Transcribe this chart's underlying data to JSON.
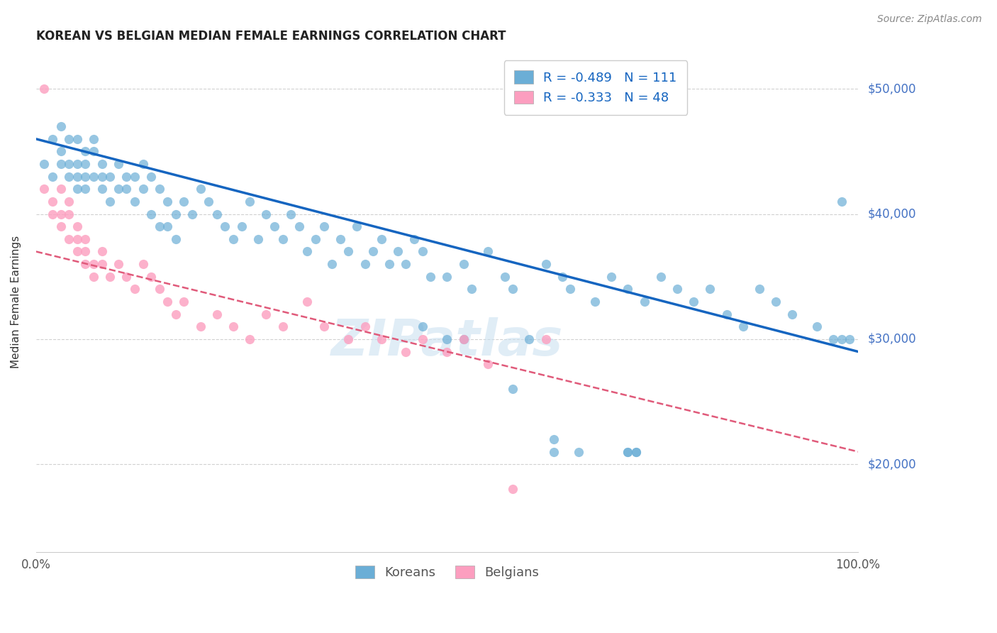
{
  "title": "KOREAN VS BELGIAN MEDIAN FEMALE EARNINGS CORRELATION CHART",
  "source": "Source: ZipAtlas.com",
  "ylabel": "Median Female Earnings",
  "xlim": [
    0.0,
    1.0
  ],
  "ylim": [
    13000,
    53000
  ],
  "yticks": [
    20000,
    30000,
    40000,
    50000
  ],
  "ytick_labels": [
    "$20,000",
    "$30,000",
    "$40,000",
    "$50,000"
  ],
  "xtick_labels": [
    "0.0%",
    "100.0%"
  ],
  "korean_color": "#6baed6",
  "belgian_color": "#fc9ebf",
  "korean_line_color": "#1565c0",
  "belgian_line_color": "#e05a7a",
  "watermark": "ZIPatlas",
  "koreans_label": "Koreans",
  "belgians_label": "Belgians",
  "korean_R": -0.489,
  "belgian_R": -0.333,
  "korean_N": 111,
  "belgian_N": 48,
  "korean_slope": -17000,
  "korean_intercept": 46000,
  "belgian_slope": -16000,
  "belgian_intercept": 37000,
  "korean_points_x": [
    0.01,
    0.02,
    0.02,
    0.03,
    0.03,
    0.03,
    0.04,
    0.04,
    0.04,
    0.05,
    0.05,
    0.05,
    0.05,
    0.06,
    0.06,
    0.06,
    0.06,
    0.07,
    0.07,
    0.07,
    0.08,
    0.08,
    0.08,
    0.09,
    0.09,
    0.1,
    0.1,
    0.11,
    0.11,
    0.12,
    0.12,
    0.13,
    0.13,
    0.14,
    0.14,
    0.15,
    0.15,
    0.16,
    0.16,
    0.17,
    0.17,
    0.18,
    0.19,
    0.2,
    0.21,
    0.22,
    0.23,
    0.24,
    0.25,
    0.26,
    0.27,
    0.28,
    0.29,
    0.3,
    0.31,
    0.32,
    0.33,
    0.34,
    0.35,
    0.36,
    0.37,
    0.38,
    0.39,
    0.4,
    0.41,
    0.42,
    0.43,
    0.44,
    0.45,
    0.46,
    0.47,
    0.48,
    0.5,
    0.52,
    0.53,
    0.55,
    0.57,
    0.58,
    0.6,
    0.62,
    0.64,
    0.65,
    0.68,
    0.7,
    0.72,
    0.74,
    0.76,
    0.78,
    0.8,
    0.82,
    0.84,
    0.86,
    0.88,
    0.9,
    0.92,
    0.95,
    0.97,
    0.98,
    0.99,
    0.47,
    0.5,
    0.52,
    0.58,
    0.63,
    0.66,
    0.63,
    0.72,
    0.73,
    0.72,
    0.73,
    0.98
  ],
  "korean_points_y": [
    44000,
    46000,
    43000,
    44000,
    45000,
    47000,
    46000,
    44000,
    43000,
    44000,
    46000,
    43000,
    42000,
    45000,
    44000,
    43000,
    42000,
    43000,
    45000,
    46000,
    43000,
    44000,
    42000,
    41000,
    43000,
    42000,
    44000,
    43000,
    42000,
    43000,
    41000,
    44000,
    42000,
    40000,
    43000,
    39000,
    42000,
    41000,
    39000,
    40000,
    38000,
    41000,
    40000,
    42000,
    41000,
    40000,
    39000,
    38000,
    39000,
    41000,
    38000,
    40000,
    39000,
    38000,
    40000,
    39000,
    37000,
    38000,
    39000,
    36000,
    38000,
    37000,
    39000,
    36000,
    37000,
    38000,
    36000,
    37000,
    36000,
    38000,
    37000,
    35000,
    35000,
    36000,
    34000,
    37000,
    35000,
    34000,
    30000,
    36000,
    35000,
    34000,
    33000,
    35000,
    34000,
    33000,
    35000,
    34000,
    33000,
    34000,
    32000,
    31000,
    34000,
    33000,
    32000,
    31000,
    30000,
    41000,
    30000,
    31000,
    30000,
    30000,
    26000,
    22000,
    21000,
    21000,
    21000,
    21000,
    21000,
    21000,
    30000
  ],
  "belgian_points_x": [
    0.01,
    0.01,
    0.02,
    0.02,
    0.03,
    0.03,
    0.03,
    0.04,
    0.04,
    0.04,
    0.05,
    0.05,
    0.05,
    0.06,
    0.06,
    0.06,
    0.07,
    0.07,
    0.08,
    0.08,
    0.09,
    0.1,
    0.11,
    0.12,
    0.13,
    0.14,
    0.15,
    0.16,
    0.17,
    0.18,
    0.2,
    0.22,
    0.24,
    0.26,
    0.28,
    0.3,
    0.33,
    0.35,
    0.38,
    0.4,
    0.42,
    0.45,
    0.47,
    0.5,
    0.52,
    0.55,
    0.58,
    0.62
  ],
  "belgian_points_y": [
    50000,
    42000,
    41000,
    40000,
    42000,
    40000,
    39000,
    38000,
    40000,
    41000,
    38000,
    37000,
    39000,
    36000,
    38000,
    37000,
    36000,
    35000,
    37000,
    36000,
    35000,
    36000,
    35000,
    34000,
    36000,
    35000,
    34000,
    33000,
    32000,
    33000,
    31000,
    32000,
    31000,
    30000,
    32000,
    31000,
    33000,
    31000,
    30000,
    31000,
    30000,
    29000,
    30000,
    29000,
    30000,
    28000,
    18000,
    30000
  ]
}
